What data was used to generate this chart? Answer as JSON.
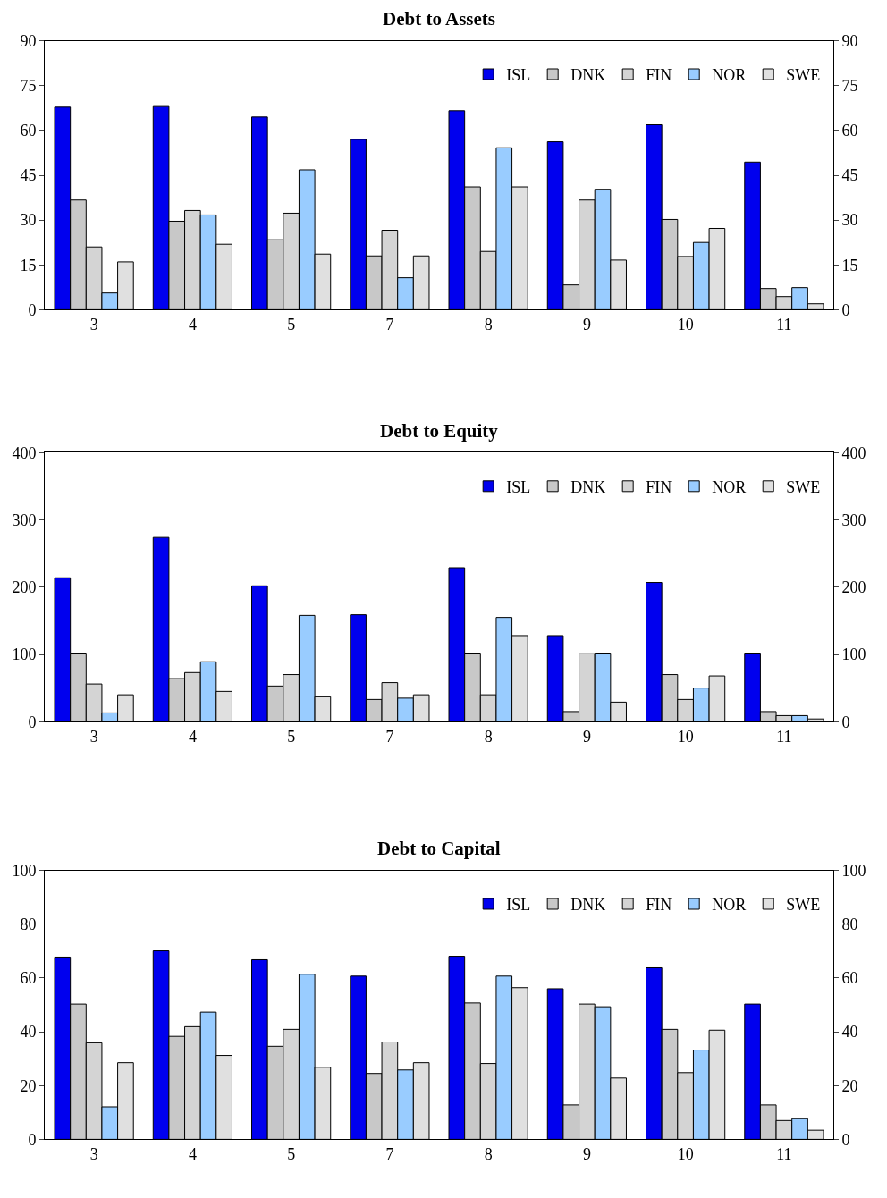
{
  "chart_data": [
    {
      "type": "bar",
      "title": "Debt to Assets",
      "categories": [
        "3",
        "4",
        "5",
        "7",
        "8",
        "9",
        "10",
        "11"
      ],
      "ylim": [
        0,
        90
      ],
      "yticks": [
        0,
        15,
        30,
        45,
        60,
        75,
        90
      ],
      "y2lim": [
        0,
        90
      ],
      "y2ticks": [
        0,
        15,
        30,
        45,
        60,
        75,
        90
      ],
      "legend": "top right",
      "series": [
        {
          "name": "ISL",
          "color": "#0000ee",
          "values": [
            67.8,
            68,
            64.5,
            57,
            66.6,
            56.2,
            61.9,
            49.4
          ]
        },
        {
          "name": "DNK",
          "color": "#c8c8c8",
          "values": [
            36.7,
            29.6,
            23.4,
            18,
            41.1,
            8.3,
            30.2,
            7.1
          ]
        },
        {
          "name": "FIN",
          "color": "#d4d4d4",
          "values": [
            21,
            33.2,
            32.3,
            26.6,
            19.5,
            36.7,
            17.8,
            4.4
          ]
        },
        {
          "name": "NOR",
          "color": "#99ccff",
          "values": [
            5.6,
            31.7,
            46.8,
            10.7,
            54.2,
            40.3,
            22.5,
            7.4
          ]
        },
        {
          "name": "SWE",
          "color": "#e0e0e0",
          "values": [
            16,
            21.9,
            18.6,
            18,
            41.1,
            16.6,
            27.2,
            2
          ]
        }
      ]
    },
    {
      "type": "bar",
      "title": "Debt to Equity",
      "categories": [
        "3",
        "4",
        "5",
        "7",
        "8",
        "9",
        "10",
        "11"
      ],
      "ylim": [
        0,
        400
      ],
      "yticks": [
        0,
        100,
        200,
        300,
        400
      ],
      "y2lim": [
        0,
        400
      ],
      "y2ticks": [
        0,
        100,
        200,
        300,
        400
      ],
      "legend": "top right",
      "series": [
        {
          "name": "ISL",
          "color": "#0000ee",
          "values": [
            214,
            274,
            202,
            159,
            229,
            128,
            207,
            102
          ]
        },
        {
          "name": "DNK",
          "color": "#c8c8c8",
          "values": [
            102,
            64,
            53,
            33,
            102,
            15,
            70,
            15
          ]
        },
        {
          "name": "FIN",
          "color": "#d4d4d4",
          "values": [
            56,
            73,
            70,
            58,
            40,
            101,
            33,
            9
          ]
        },
        {
          "name": "NOR",
          "color": "#99ccff",
          "values": [
            13,
            89,
            158,
            35,
            155,
            102,
            50,
            9
          ]
        },
        {
          "name": "SWE",
          "color": "#e0e0e0",
          "values": [
            40,
            45,
            37,
            40,
            128,
            29,
            68,
            4
          ]
        }
      ]
    },
    {
      "type": "bar",
      "title": "Debt to Capital",
      "categories": [
        "3",
        "4",
        "5",
        "7",
        "8",
        "9",
        "10",
        "11"
      ],
      "ylim": [
        0,
        100
      ],
      "yticks": [
        0,
        20,
        40,
        60,
        80,
        100
      ],
      "y2lim": [
        0,
        100
      ],
      "y2ticks": [
        0,
        20,
        40,
        60,
        80,
        100
      ],
      "legend": "top right",
      "series": [
        {
          "name": "ISL",
          "color": "#0000ee",
          "values": [
            67.8,
            70.1,
            66.8,
            60.7,
            68.1,
            56,
            63.8,
            50.3
          ]
        },
        {
          "name": "DNK",
          "color": "#c8c8c8",
          "values": [
            50.3,
            38.3,
            34.6,
            24.5,
            50.7,
            12.8,
            40.9,
            12.8
          ]
        },
        {
          "name": "FIN",
          "color": "#d4d4d4",
          "values": [
            35.9,
            41.9,
            40.9,
            36.2,
            28.2,
            50.3,
            24.8,
            7
          ]
        },
        {
          "name": "NOR",
          "color": "#99ccff",
          "values": [
            12.1,
            47.3,
            61.4,
            25.8,
            60.7,
            49.3,
            33.2,
            7.7
          ]
        },
        {
          "name": "SWE",
          "color": "#e0e0e0",
          "values": [
            28.5,
            31.2,
            26.8,
            28.5,
            56.4,
            22.8,
            40.6,
            3.4
          ]
        }
      ]
    }
  ]
}
